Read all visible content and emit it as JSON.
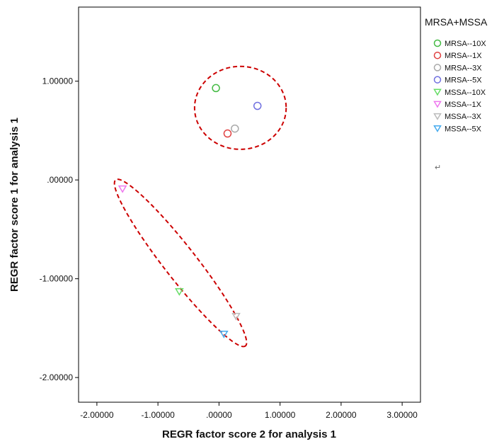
{
  "chart_data": {
    "type": "scatter",
    "title": "",
    "xlabel": "REGR factor score   2 for analysis 1",
    "ylabel": "REGR factor score   1 for analysis 1",
    "xlim": [
      -2.3,
      3.3
    ],
    "ylim": [
      -2.25,
      1.75
    ],
    "x_ticks": [
      -2,
      -1,
      0,
      1,
      2,
      3
    ],
    "x_tick_labels": [
      "-2.00000",
      "-1.00000",
      ".00000",
      "1.00000",
      "2.00000",
      "3.00000"
    ],
    "y_ticks": [
      1,
      0,
      -1,
      -2
    ],
    "y_tick_labels": [
      "1.00000",
      ".00000",
      "-1.00000",
      "-2.00000"
    ],
    "grid": false,
    "legend": {
      "title": "MRSA+MSSA",
      "position": "right",
      "extra_text": "↵"
    },
    "series": [
      {
        "name": "MRSA--10X",
        "marker": "circle",
        "color": "#44bb44",
        "x": -0.05,
        "y": 0.93
      },
      {
        "name": "MRSA--1X",
        "marker": "circle",
        "color": "#e04040",
        "x": 0.14,
        "y": 0.47
      },
      {
        "name": "MRSA--3X",
        "marker": "circle",
        "color": "#a9a9a9",
        "x": 0.26,
        "y": 0.52
      },
      {
        "name": "MRSA--5X",
        "marker": "circle",
        "color": "#7070e0",
        "x": 0.63,
        "y": 0.75
      },
      {
        "name": "MSSA--10X",
        "marker": "triangle-down",
        "color": "#66dd66",
        "x": -0.65,
        "y": -1.13
      },
      {
        "name": "MSSA--1X",
        "marker": "triangle-down",
        "color": "#ee77ee",
        "x": -1.58,
        "y": -0.09
      },
      {
        "name": "MSSA--3X",
        "marker": "triangle-down",
        "color": "#bbbbbb",
        "x": 0.28,
        "y": -1.38
      },
      {
        "name": "MSSA--5X",
        "marker": "triangle-down",
        "color": "#44aaee",
        "x": 0.08,
        "y": -1.56
      }
    ],
    "annotations": [
      {
        "type": "dashed-ellipse",
        "color": "#cc0000",
        "cx": 0.35,
        "cy": 0.73,
        "rx": 0.75,
        "ry": 0.42,
        "rotation_deg": 0
      },
      {
        "type": "dashed-ellipse",
        "color": "#cc0000",
        "cx": -0.63,
        "cy": -0.84,
        "rx": 1.21,
        "ry": 0.21,
        "rotation_deg": 52
      }
    ]
  }
}
